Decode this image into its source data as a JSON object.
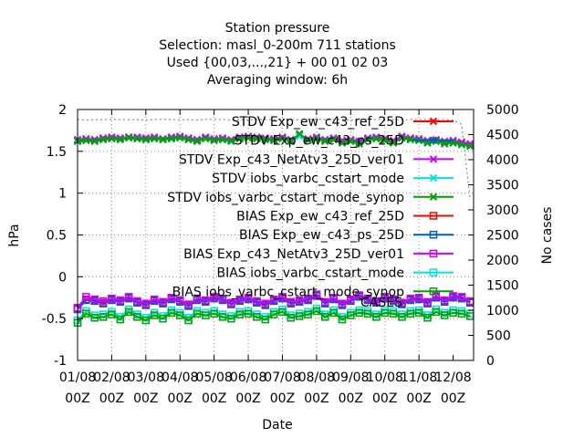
{
  "chart_data": {
    "type": "line",
    "title_lines": [
      "Station pressure",
      "Selection: masl_0-200m    711 stations",
      "Used {00,03,...,21} + 00 01 02 03",
      "Averaging window:  6h"
    ],
    "xlabel": "Date",
    "ylabel": "hPa",
    "y2label": "No cases",
    "xlim": [
      0,
      11.6
    ],
    "ylim": [
      -1,
      2
    ],
    "y2lim": [
      0,
      5000
    ],
    "y_ticks": [
      "-1",
      "-0.5",
      "0",
      "0.5",
      "1",
      "1.5",
      "2"
    ],
    "y2_ticks": [
      "0",
      "500",
      "1000",
      "1500",
      "2000",
      "2500",
      "3000",
      "3500",
      "4000",
      "4500",
      "5000"
    ],
    "x_tick_labels": [
      {
        "top": "01/08",
        "bottom": "00Z"
      },
      {
        "top": "02/08",
        "bottom": "00Z"
      },
      {
        "top": "03/08",
        "bottom": "00Z"
      },
      {
        "top": "04/08",
        "bottom": "00Z"
      },
      {
        "top": "05/08",
        "bottom": "00Z"
      },
      {
        "top": "06/08",
        "bottom": "00Z"
      },
      {
        "top": "07/08",
        "bottom": "00Z"
      },
      {
        "top": "08/08",
        "bottom": "00Z"
      },
      {
        "top": "09/08",
        "bottom": "00Z"
      },
      {
        "top": "10/08",
        "bottom": "00Z"
      },
      {
        "top": "11/08",
        "bottom": "00Z"
      },
      {
        "top": "12/08",
        "bottom": "00Z"
      }
    ],
    "x": [
      0,
      0.25,
      0.5,
      0.75,
      1,
      1.25,
      1.5,
      1.75,
      2,
      2.25,
      2.5,
      2.75,
      3,
      3.25,
      3.5,
      3.75,
      4,
      4.25,
      4.5,
      4.75,
      5,
      5.25,
      5.5,
      5.75,
      6,
      6.25,
      6.5,
      6.75,
      7,
      7.25,
      7.5,
      7.75,
      8,
      8.25,
      8.5,
      8.75,
      9,
      9.25,
      9.5,
      9.75,
      10,
      10.25,
      10.5,
      10.75,
      11,
      11.25,
      11.5
    ],
    "series": [
      {
        "name": "STDV Exp_ew_c43_ref_25D",
        "color": "#ff0000",
        "marker": "x",
        "values": [
          1.63,
          1.64,
          1.63,
          1.65,
          1.66,
          1.65,
          1.67,
          1.66,
          1.65,
          1.66,
          1.64,
          1.66,
          1.67,
          1.65,
          1.63,
          1.66,
          1.64,
          1.65,
          1.63,
          1.66,
          1.67,
          1.66,
          1.65,
          1.64,
          1.66,
          1.63,
          1.69,
          1.64,
          1.66,
          1.63,
          1.65,
          1.62,
          1.63,
          1.61,
          1.65,
          1.66,
          1.64,
          1.62,
          1.67,
          1.65,
          1.64,
          1.62,
          1.63,
          1.61,
          1.62,
          1.6,
          1.58
        ]
      },
      {
        "name": "STDV Exp_ew_c43_ps_25D",
        "color": "#0060ad",
        "marker": "x",
        "values": [
          1.63,
          1.64,
          1.64,
          1.65,
          1.66,
          1.65,
          1.67,
          1.66,
          1.65,
          1.66,
          1.65,
          1.66,
          1.67,
          1.65,
          1.64,
          1.66,
          1.64,
          1.65,
          1.63,
          1.66,
          1.67,
          1.66,
          1.65,
          1.64,
          1.66,
          1.63,
          1.69,
          1.64,
          1.66,
          1.63,
          1.65,
          1.62,
          1.63,
          1.61,
          1.65,
          1.66,
          1.64,
          1.62,
          1.67,
          1.65,
          1.64,
          1.62,
          1.63,
          1.61,
          1.62,
          1.6,
          1.58
        ]
      },
      {
        "name": "STDV Exp_c43_NetAtv3_25D_ver01",
        "color": "#cc00ff",
        "marker": "x",
        "values": [
          1.64,
          1.65,
          1.64,
          1.66,
          1.67,
          1.66,
          1.67,
          1.67,
          1.66,
          1.67,
          1.65,
          1.67,
          1.68,
          1.66,
          1.64,
          1.67,
          1.65,
          1.66,
          1.64,
          1.67,
          1.68,
          1.67,
          1.66,
          1.65,
          1.67,
          1.64,
          1.7,
          1.65,
          1.67,
          1.64,
          1.66,
          1.63,
          1.64,
          1.62,
          1.66,
          1.67,
          1.65,
          1.63,
          1.68,
          1.66,
          1.65,
          1.63,
          1.64,
          1.62,
          1.63,
          1.61,
          1.59
        ]
      },
      {
        "name": "STDV iobs_varbc_cstart_mode",
        "color": "#00e0e0",
        "marker": "x",
        "values": [
          1.62,
          1.63,
          1.62,
          1.64,
          1.65,
          1.64,
          1.66,
          1.65,
          1.64,
          1.65,
          1.64,
          1.65,
          1.66,
          1.64,
          1.62,
          1.65,
          1.63,
          1.64,
          1.62,
          1.65,
          1.66,
          1.65,
          1.64,
          1.63,
          1.65,
          1.62,
          1.68,
          1.63,
          1.65,
          1.62,
          1.64,
          1.6,
          1.62,
          1.59,
          1.64,
          1.65,
          1.63,
          1.6,
          1.66,
          1.64,
          1.63,
          1.6,
          1.62,
          1.59,
          1.6,
          1.58,
          1.56
        ]
      },
      {
        "name": "STDV iobs_varbc_cstart_mode_synop",
        "color": "#00a000",
        "marker": "x",
        "values": [
          1.62,
          1.63,
          1.62,
          1.64,
          1.65,
          1.64,
          1.66,
          1.65,
          1.64,
          1.65,
          1.64,
          1.65,
          1.66,
          1.64,
          1.62,
          1.65,
          1.63,
          1.64,
          1.62,
          1.65,
          1.66,
          1.65,
          1.64,
          1.63,
          1.65,
          1.62,
          1.71,
          1.63,
          1.65,
          1.62,
          1.64,
          1.6,
          1.62,
          1.59,
          1.64,
          1.65,
          1.63,
          1.6,
          1.66,
          1.64,
          1.63,
          1.6,
          1.62,
          1.59,
          1.6,
          1.58,
          1.56
        ]
      },
      {
        "name": "BIAS Exp_ew_c43_ref_25D",
        "color": "#ff0000",
        "marker": "square",
        "values": [
          -0.38,
          -0.27,
          -0.28,
          -0.31,
          -0.27,
          -0.29,
          -0.25,
          -0.3,
          -0.33,
          -0.28,
          -0.31,
          -0.26,
          -0.29,
          -0.34,
          -0.27,
          -0.29,
          -0.25,
          -0.27,
          -0.32,
          -0.28,
          -0.26,
          -0.3,
          -0.33,
          -0.28,
          -0.25,
          -0.31,
          -0.29,
          -0.27,
          -0.22,
          -0.31,
          -0.26,
          -0.33,
          -0.28,
          -0.23,
          -0.27,
          -0.3,
          -0.25,
          -0.28,
          -0.32,
          -0.27,
          -0.26,
          -0.31,
          -0.24,
          -0.29,
          -0.24,
          -0.25,
          -0.3
        ]
      },
      {
        "name": "BIAS Exp_ew_c43_ps_25D",
        "color": "#0060ad",
        "marker": "square",
        "values": [
          -0.39,
          -0.28,
          -0.29,
          -0.32,
          -0.28,
          -0.3,
          -0.26,
          -0.31,
          -0.34,
          -0.29,
          -0.32,
          -0.27,
          -0.3,
          -0.35,
          -0.28,
          -0.3,
          -0.26,
          -0.28,
          -0.33,
          -0.29,
          -0.27,
          -0.31,
          -0.34,
          -0.29,
          -0.26,
          -0.32,
          -0.3,
          -0.28,
          -0.23,
          -0.32,
          -0.27,
          -0.34,
          -0.29,
          -0.24,
          -0.28,
          -0.31,
          -0.26,
          -0.29,
          -0.33,
          -0.28,
          -0.27,
          -0.32,
          -0.25,
          -0.3,
          -0.25,
          -0.26,
          -0.31
        ]
      },
      {
        "name": "BIAS Exp_c43_NetAtv3_25D_ver01",
        "color": "#cc00ff",
        "marker": "square",
        "values": [
          -0.37,
          -0.24,
          -0.27,
          -0.29,
          -0.26,
          -0.28,
          -0.24,
          -0.29,
          -0.32,
          -0.27,
          -0.3,
          -0.25,
          -0.28,
          -0.33,
          -0.26,
          -0.28,
          -0.24,
          -0.26,
          -0.31,
          -0.27,
          -0.25,
          -0.29,
          -0.32,
          -0.27,
          -0.24,
          -0.3,
          -0.28,
          -0.26,
          -0.21,
          -0.3,
          -0.25,
          -0.32,
          -0.27,
          -0.22,
          -0.26,
          -0.29,
          -0.24,
          -0.27,
          -0.31,
          -0.26,
          -0.25,
          -0.3,
          -0.23,
          -0.28,
          -0.23,
          -0.24,
          -0.29
        ]
      },
      {
        "name": "BIAS iobs_varbc_cstart_mode",
        "color": "#00e0e0",
        "marker": "square",
        "values": [
          -0.52,
          -0.41,
          -0.46,
          -0.45,
          -0.42,
          -0.48,
          -0.39,
          -0.45,
          -0.49,
          -0.43,
          -0.47,
          -0.4,
          -0.43,
          -0.49,
          -0.41,
          -0.43,
          -0.41,
          -0.45,
          -0.47,
          -0.42,
          -0.41,
          -0.45,
          -0.48,
          -0.42,
          -0.39,
          -0.46,
          -0.44,
          -0.42,
          -0.38,
          -0.45,
          -0.4,
          -0.48,
          -0.43,
          -0.4,
          -0.41,
          -0.45,
          -0.4,
          -0.41,
          -0.45,
          -0.41,
          -0.4,
          -0.46,
          -0.39,
          -0.43,
          -0.4,
          -0.41,
          -0.44
        ]
      },
      {
        "name": "BIAS iobs_varbc_cstart_mode_synop",
        "color": "#00a000",
        "marker": "square",
        "values": [
          -0.55,
          -0.44,
          -0.49,
          -0.48,
          -0.45,
          -0.51,
          -0.42,
          -0.48,
          -0.52,
          -0.46,
          -0.5,
          -0.43,
          -0.46,
          -0.52,
          -0.44,
          -0.46,
          -0.44,
          -0.48,
          -0.5,
          -0.45,
          -0.44,
          -0.48,
          -0.51,
          -0.45,
          -0.42,
          -0.49,
          -0.47,
          -0.45,
          -0.41,
          -0.48,
          -0.43,
          -0.51,
          -0.46,
          -0.43,
          -0.44,
          -0.48,
          -0.43,
          -0.44,
          -0.48,
          -0.44,
          -0.43,
          -0.49,
          -0.42,
          -0.46,
          -0.43,
          -0.44,
          -0.47
        ]
      }
    ],
    "cases_label": "CASES",
    "cases_color": "#888888",
    "cases_values": [
      4800,
      4790,
      4795,
      4800,
      4805,
      4800,
      4795,
      4800,
      4790,
      4800,
      4805,
      4800,
      4795,
      4800,
      4790,
      4800,
      4805,
      4800,
      4795,
      4800,
      4790,
      4800,
      4805,
      4800,
      4795,
      4800,
      4790,
      4800,
      4805,
      4800,
      4795,
      4800,
      4790,
      4800,
      4805,
      4800,
      4795,
      4800,
      4790,
      4800,
      4805,
      4800,
      4795,
      4800,
      4790,
      4700,
      3200
    ],
    "grid": true,
    "legend_position": "top-right"
  }
}
